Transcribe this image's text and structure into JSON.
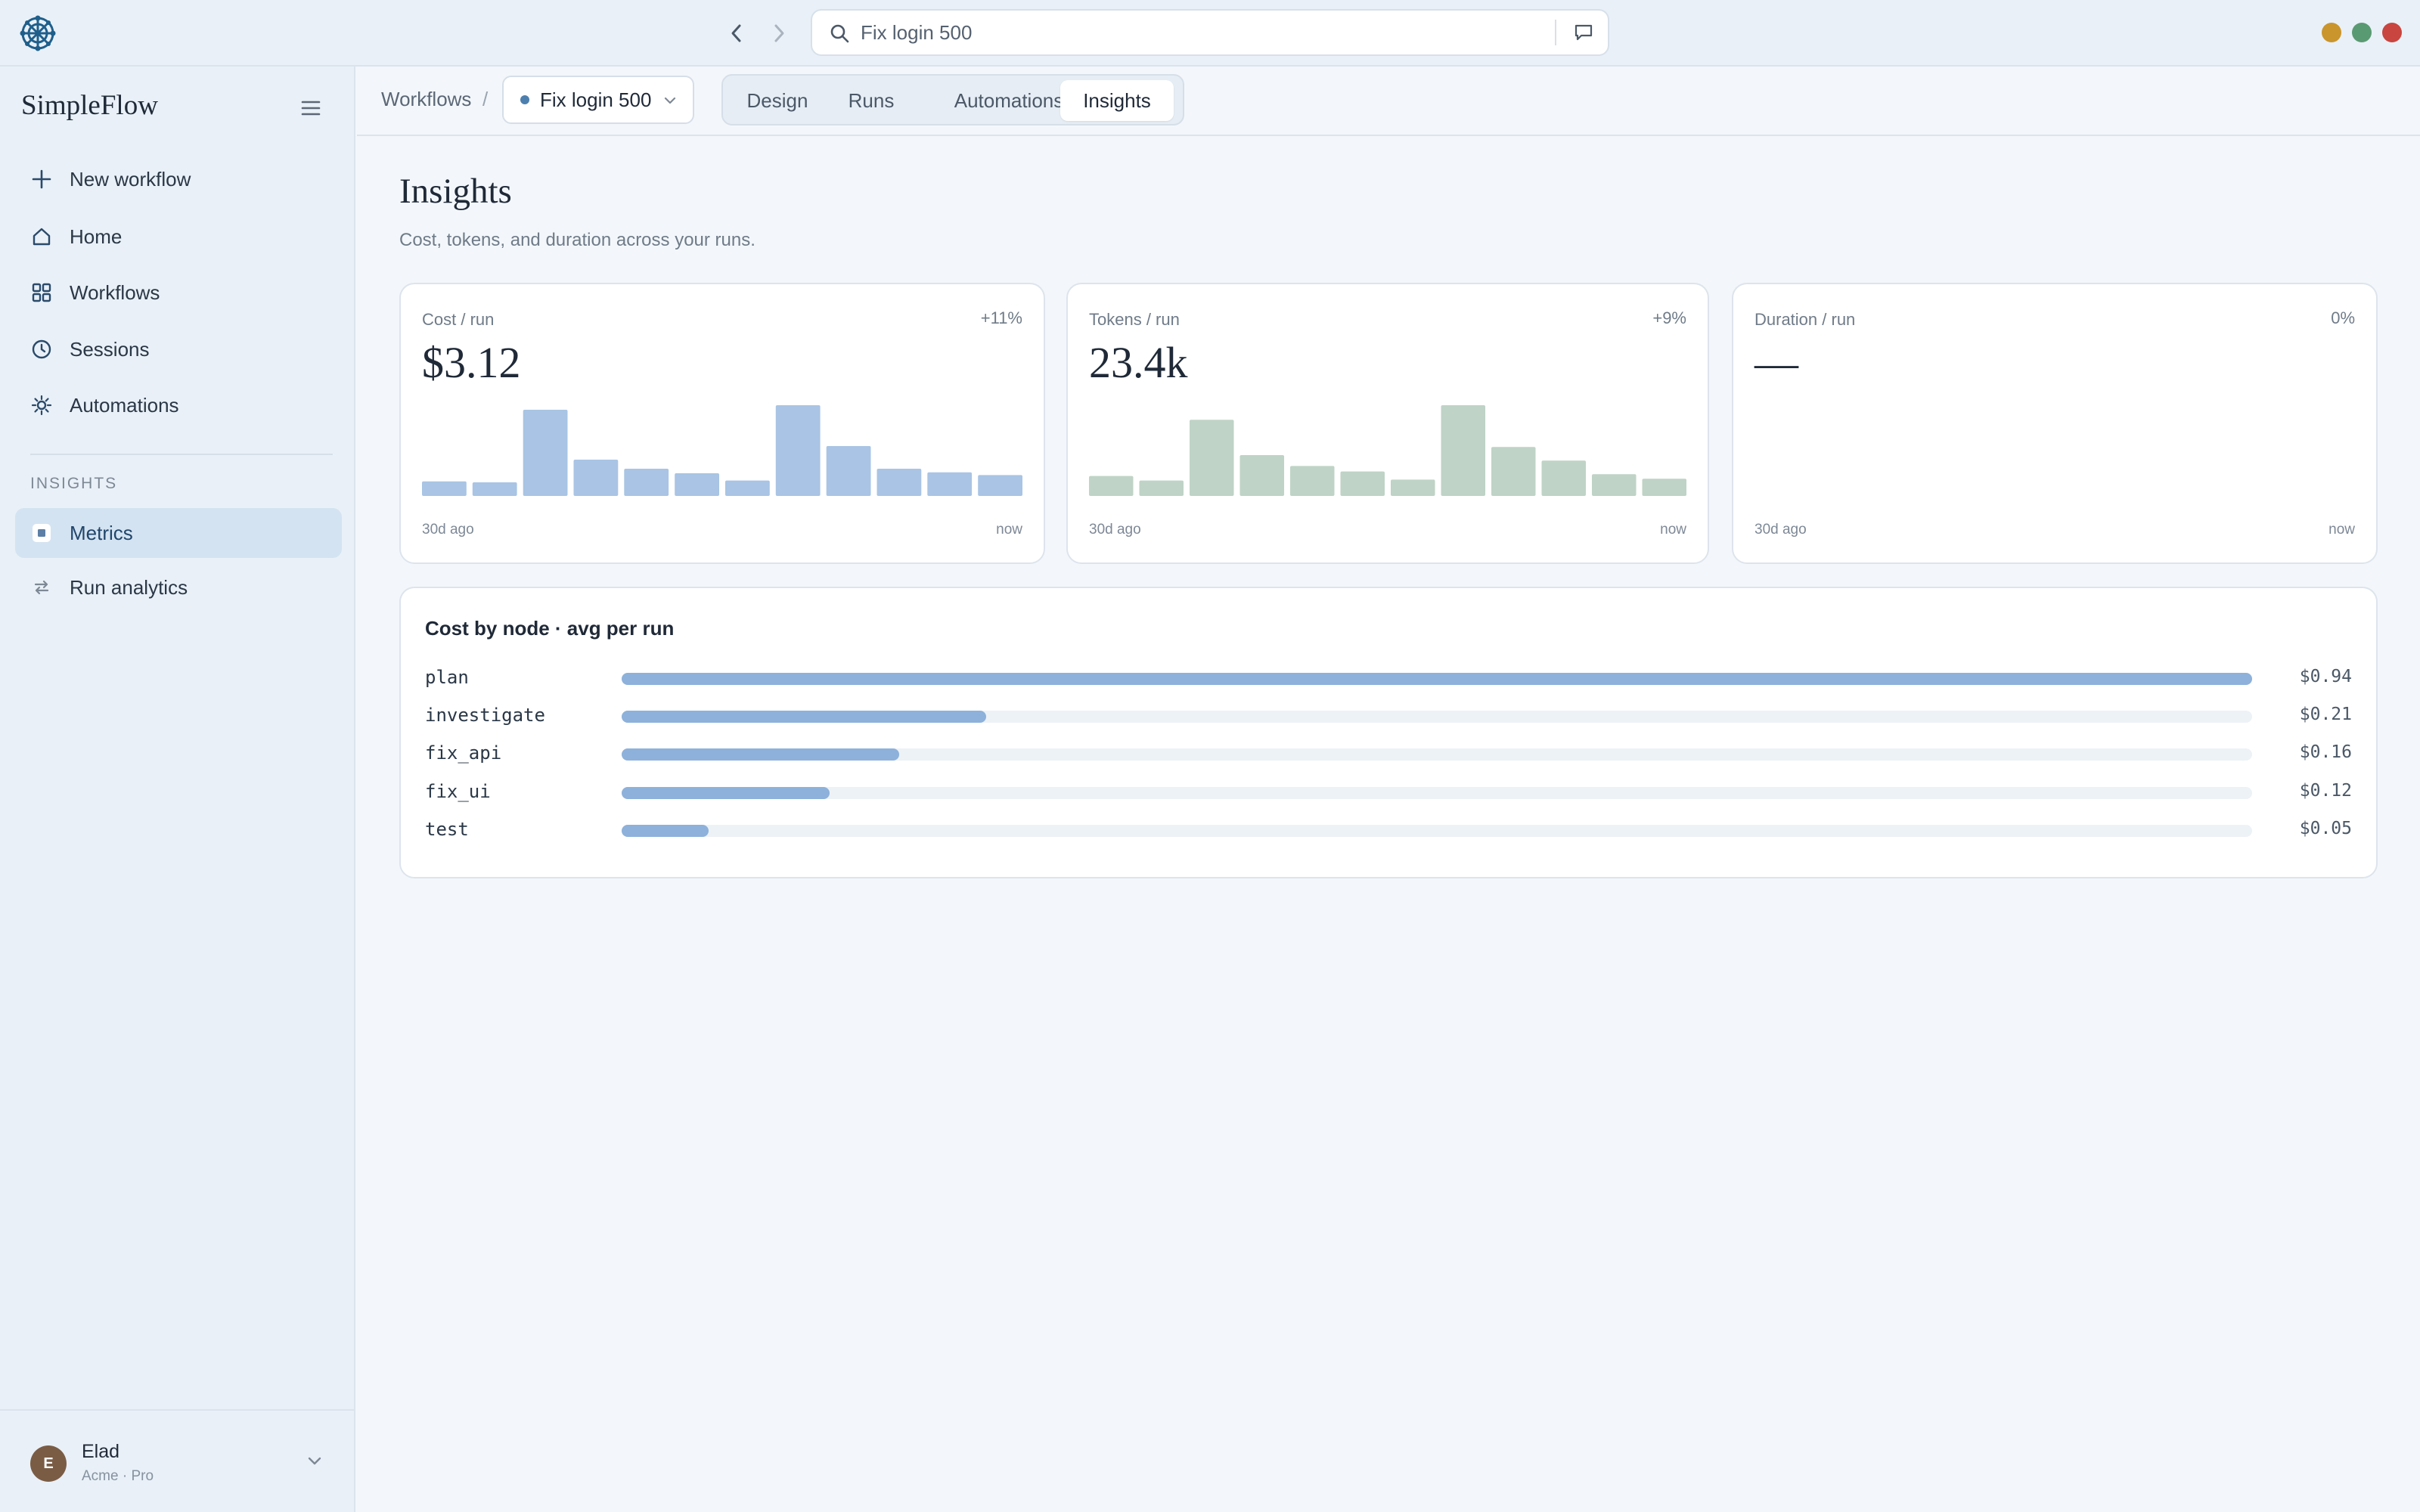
{
  "window": {
    "search_text": "Fix login 500"
  },
  "sidebar": {
    "brand": "SimpleFlow",
    "items": [
      {
        "label": "New workflow",
        "icon": "plus-icon"
      },
      {
        "label": "Home",
        "icon": "home-icon"
      },
      {
        "label": "Workflows",
        "icon": "grid-icon"
      },
      {
        "label": "Sessions",
        "icon": "clock-icon"
      },
      {
        "label": "Automations",
        "icon": "sun-icon"
      }
    ],
    "section_label": "INSIGHTS",
    "section_items": [
      {
        "label": "Metrics",
        "icon": "metrics-icon",
        "active": true
      },
      {
        "label": "Run analytics",
        "icon": "swap-icon",
        "active": false
      }
    ],
    "user": {
      "initial": "E",
      "name": "Elad",
      "plan": "Acme · Pro"
    }
  },
  "toolbar": {
    "breadcrumb_root": "Workflows",
    "breadcrumb_sep": "/",
    "workflow_name": "Fix login 500",
    "tabs": [
      "Design",
      "Runs",
      "Automations",
      "Insights"
    ],
    "active_tab": "Insights"
  },
  "main": {
    "title": "Insights",
    "subtitle": "Cost, tokens, and duration across your runs.",
    "cards": [
      {
        "label": "Cost / run",
        "change": "+11%",
        "value": "$3.12",
        "axis_left": "30d ago",
        "axis_right": "now",
        "bar_color": "#a9c4e4",
        "bars": [
          0.16,
          0.15,
          0.95,
          0.4,
          0.3,
          0.25,
          0.17,
          1.0,
          0.55,
          0.3,
          0.26,
          0.23
        ]
      },
      {
        "label": "Tokens / run",
        "change": "+9%",
        "value": "23.4k",
        "axis_left": "30d ago",
        "axis_right": "now",
        "bar_color": "#bfd3c6",
        "bars": [
          0.22,
          0.17,
          0.84,
          0.45,
          0.33,
          0.27,
          0.18,
          1.0,
          0.54,
          0.39,
          0.24,
          0.19
        ]
      },
      {
        "label": "Duration / run",
        "change": "0%",
        "value": "—",
        "axis_left": "30d ago",
        "axis_right": "now",
        "bar_color": "#cccccc",
        "bars": []
      }
    ],
    "cost_by_node": {
      "title": "Cost by node · avg per run",
      "bar_color": "#8db1da",
      "max": 0.94,
      "rows": [
        {
          "node": "plan",
          "value": 0.94,
          "label": "$0.94"
        },
        {
          "node": "investigate",
          "value": 0.21,
          "label": "$0.21"
        },
        {
          "node": "fix_api",
          "value": 0.16,
          "label": "$0.16"
        },
        {
          "node": "fix_ui",
          "value": 0.12,
          "label": "$0.12"
        },
        {
          "node": "test",
          "value": 0.05,
          "label": "$0.05"
        }
      ]
    }
  }
}
